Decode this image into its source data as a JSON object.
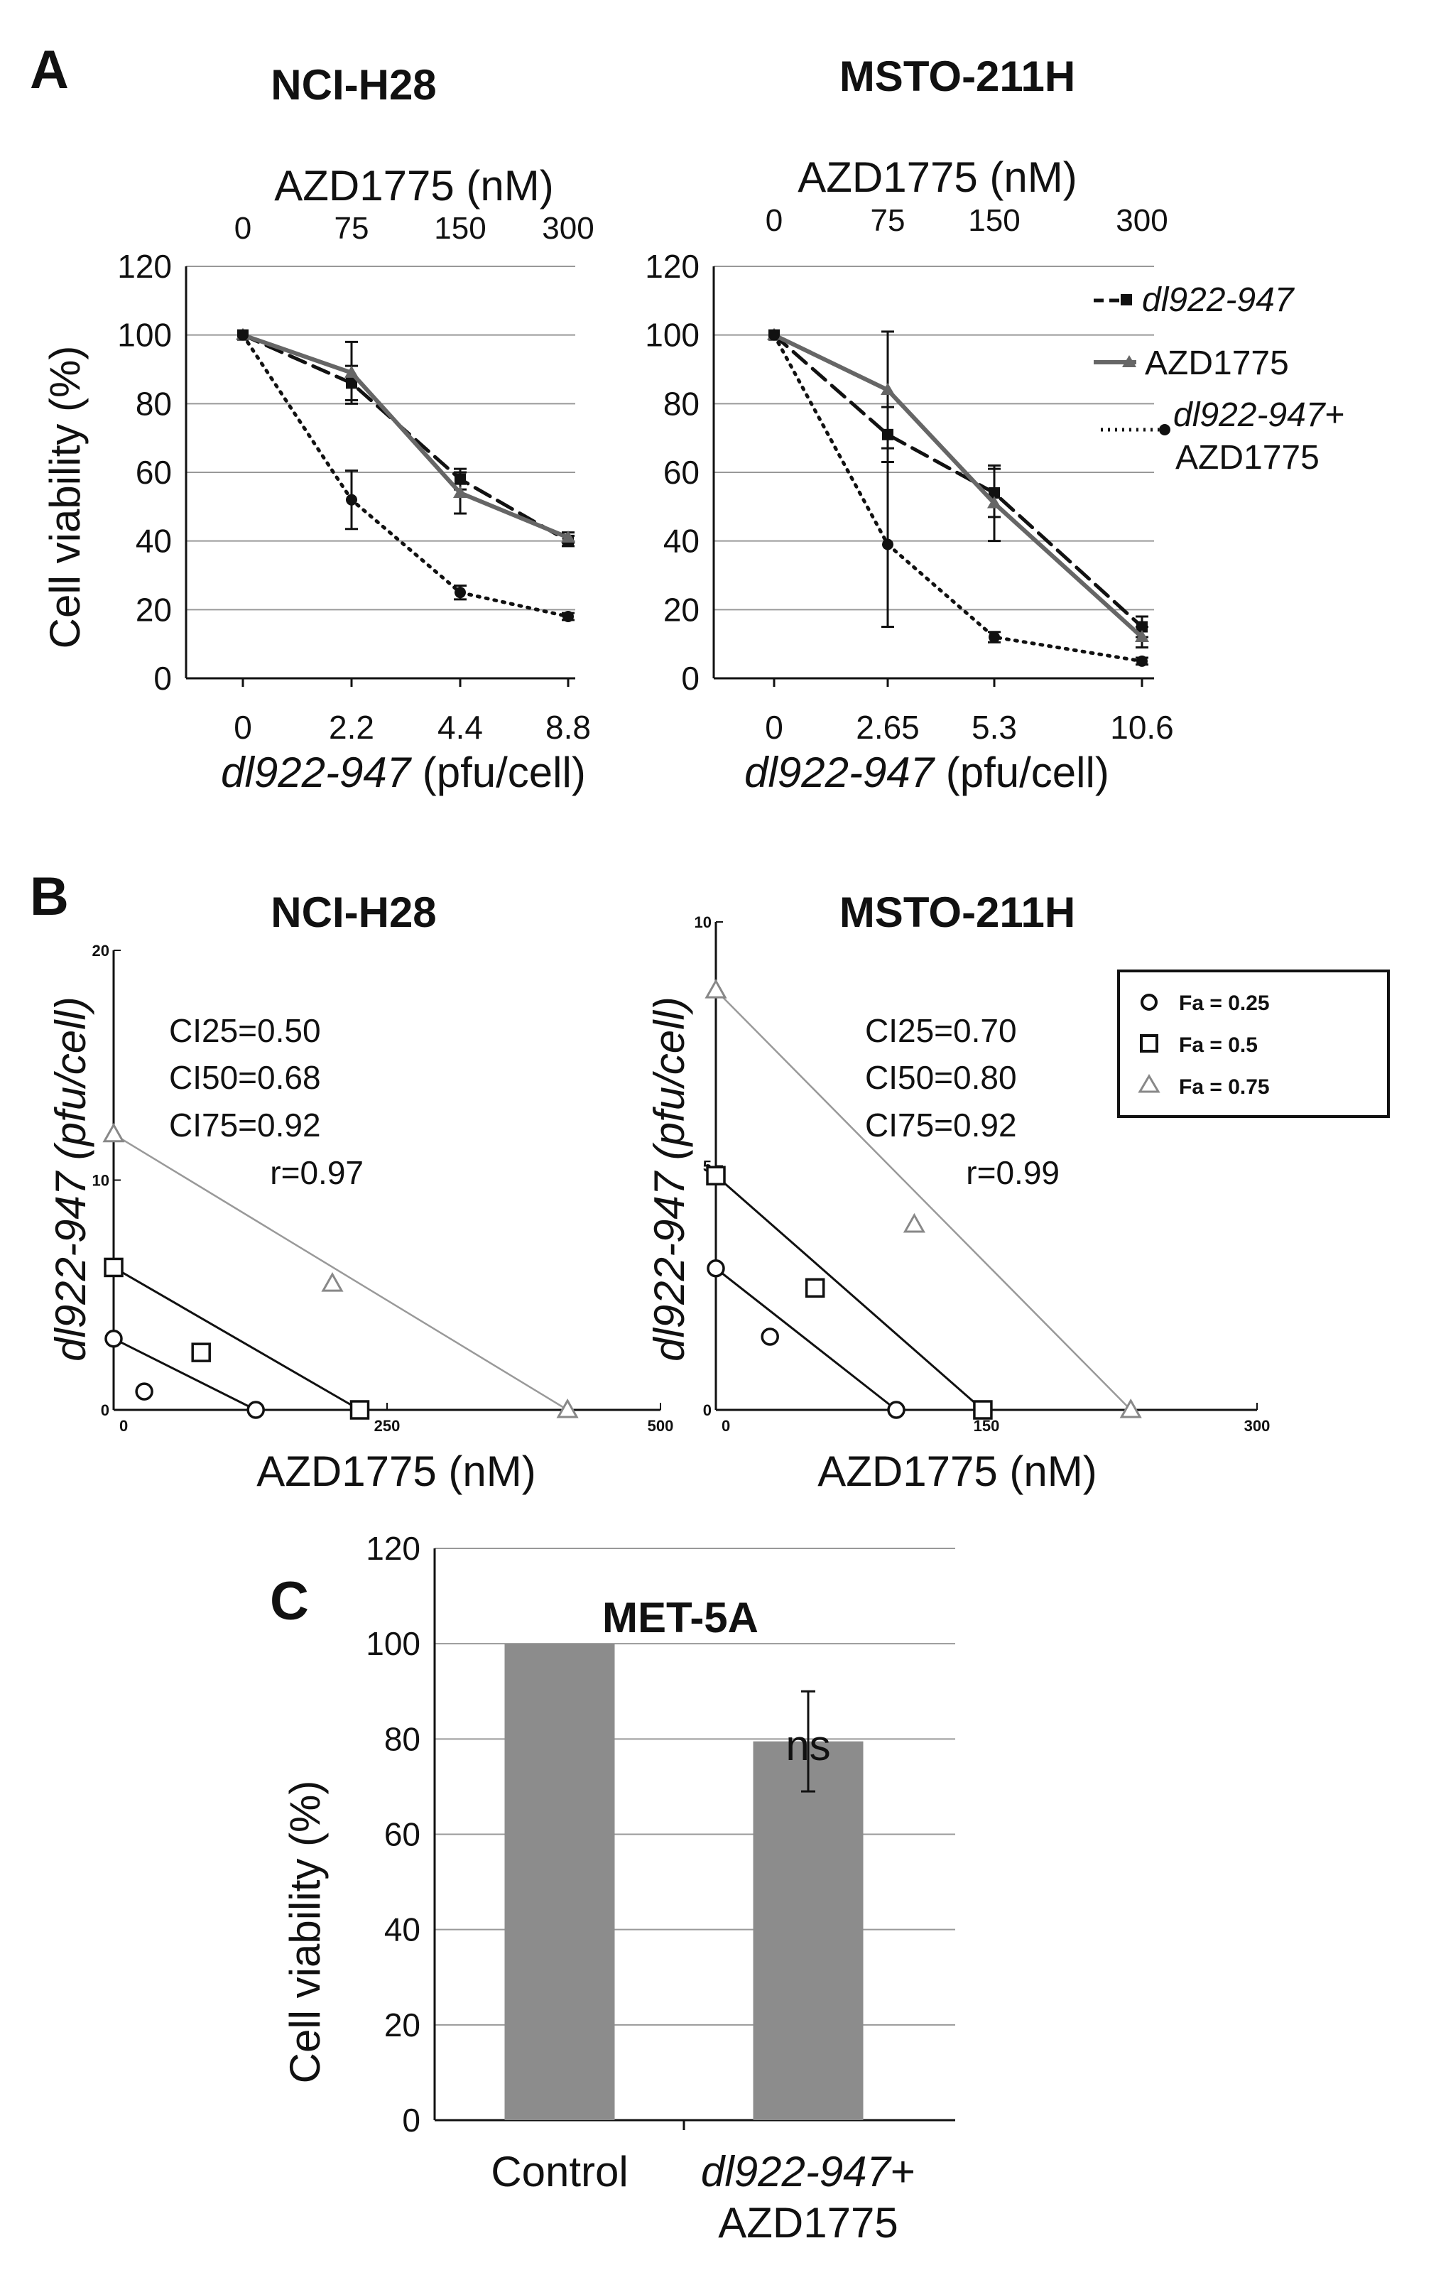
{
  "figure": {
    "panel_labels": [
      "A",
      "B",
      "C"
    ]
  },
  "chart_data": [
    {
      "id": "A1",
      "type": "line",
      "title": "NCI-H28",
      "top_axis_label": "AZD1775 (nM)",
      "top_ticks": [
        "0",
        "75",
        "150",
        "300"
      ],
      "x_ticks": [
        "0",
        "2.2",
        "4.4",
        "8.8"
      ],
      "xlabel_italic": "dl922-947",
      "xlabel_rest": " (pfu/cell)",
      "ylabel": "Cell viability (%)",
      "ylim": [
        0,
        120
      ],
      "y_ticks": [
        0,
        20,
        40,
        60,
        80,
        100,
        120
      ],
      "series": [
        {
          "name": "dl922-947",
          "style": "dashed",
          "values": [
            100,
            86,
            58,
            40
          ],
          "errors": [
            0,
            5,
            3,
            1.5
          ]
        },
        {
          "name": "AZD1775",
          "style": "solid",
          "values": [
            100,
            89,
            54,
            41
          ],
          "errors": [
            0,
            9,
            6,
            1.5
          ]
        },
        {
          "name": "dl922-947+AZD1775",
          "style": "dotted",
          "values": [
            100,
            52,
            25,
            18
          ],
          "errors": [
            0,
            8.5,
            2,
            1
          ]
        }
      ]
    },
    {
      "id": "A2",
      "type": "line",
      "title": "MSTO-211H",
      "top_axis_label": "AZD1775 (nM)",
      "top_ticks": [
        "0",
        "75",
        "150",
        "300"
      ],
      "x_ticks": [
        "0",
        "2.65",
        "5.3",
        "10.6"
      ],
      "xlabel_italic": "dl922-947",
      "xlabel_rest": " (pfu/cell)",
      "ylabel": "",
      "ylim": [
        0,
        120
      ],
      "y_ticks": [
        0,
        20,
        40,
        60,
        80,
        100,
        120
      ],
      "legend": [
        {
          "italic": "dl922-947",
          "rest": "",
          "rest2": ""
        },
        {
          "italic": "",
          "rest": "AZD1775",
          "rest2": ""
        },
        {
          "italic": "dl922-947",
          "rest": "+",
          "rest2": "AZD1775"
        }
      ],
      "series": [
        {
          "name": "dl922-947",
          "style": "dashed",
          "values": [
            100,
            71,
            54,
            15
          ],
          "errors": [
            0,
            8,
            7,
            3
          ]
        },
        {
          "name": "AZD1775",
          "style": "solid",
          "values": [
            100,
            84,
            51,
            12
          ],
          "errors": [
            0,
            17,
            11,
            3
          ]
        },
        {
          "name": "dl922-947+AZD1775",
          "style": "dotted",
          "values": [
            100,
            39,
            12,
            5
          ],
          "errors": [
            0,
            24,
            1.5,
            1
          ]
        }
      ]
    },
    {
      "id": "B1",
      "type": "scatter",
      "title": "NCI-H28",
      "xlabel": "AZD1775 (nM)",
      "ylabel_italic": "dl922-947 (pfu/cell)",
      "xlim": [
        0,
        500
      ],
      "ylim": [
        0,
        20
      ],
      "x_ticks": [
        "0",
        "250",
        "500"
      ],
      "y_ticks": [
        "0",
        "10",
        "20"
      ],
      "annotations": [
        "CI25=0.50",
        "CI50=0.68",
        "CI75=0.92",
        "r=0.97"
      ],
      "isobolograms": [
        {
          "fa": 0.25,
          "x_intercept": 130,
          "y_intercept": 3.1,
          "point": [
            28,
            0.8
          ]
        },
        {
          "fa": 0.5,
          "x_intercept": 225,
          "y_intercept": 6.2,
          "point": [
            80,
            2.5
          ]
        },
        {
          "fa": 0.75,
          "x_intercept": 415,
          "y_intercept": 12,
          "point": [
            200,
            5.5
          ]
        }
      ]
    },
    {
      "id": "B2",
      "type": "scatter",
      "title": "MSTO-211H",
      "xlabel": "AZD1775 (nM)",
      "ylabel_italic": "dl922-947 (pfu/cell)",
      "xlim": [
        0,
        300
      ],
      "ylim": [
        0,
        10
      ],
      "x_ticks": [
        "0",
        "150",
        "300"
      ],
      "y_ticks": [
        "0",
        "5",
        "10"
      ],
      "annotations": [
        "CI25=0.70",
        "CI50=0.80",
        "CI75=0.92",
        "r=0.99"
      ],
      "legend": [
        "Fa = 0.25",
        "Fa = 0.5",
        "Fa = 0.75"
      ],
      "isobolograms": [
        {
          "fa": 0.25,
          "x_intercept": 100,
          "y_intercept": 2.9,
          "point": [
            30,
            1.5
          ]
        },
        {
          "fa": 0.5,
          "x_intercept": 148,
          "y_intercept": 4.8,
          "point": [
            55,
            2.5
          ]
        },
        {
          "fa": 0.75,
          "x_intercept": 230,
          "y_intercept": 8.6,
          "point": [
            110,
            3.8
          ]
        }
      ]
    },
    {
      "id": "C",
      "type": "bar",
      "title": "MET-5A",
      "ylabel": "Cell viability (%)",
      "ylim": [
        0,
        120
      ],
      "y_ticks": [
        0,
        20,
        40,
        60,
        80,
        100,
        120
      ],
      "categories": [
        "Control",
        "dl922-947+AZD1775"
      ],
      "category_labels": [
        {
          "italic": "",
          "rest": "Control",
          "rest2": ""
        },
        {
          "italic": "dl922-947",
          "rest": "+",
          "rest2": "AZD1775"
        }
      ],
      "values": [
        100,
        79.5
      ],
      "errors": [
        0,
        10.5
      ],
      "annotation": "ns",
      "bar_color": "#8c8c8c"
    }
  ]
}
